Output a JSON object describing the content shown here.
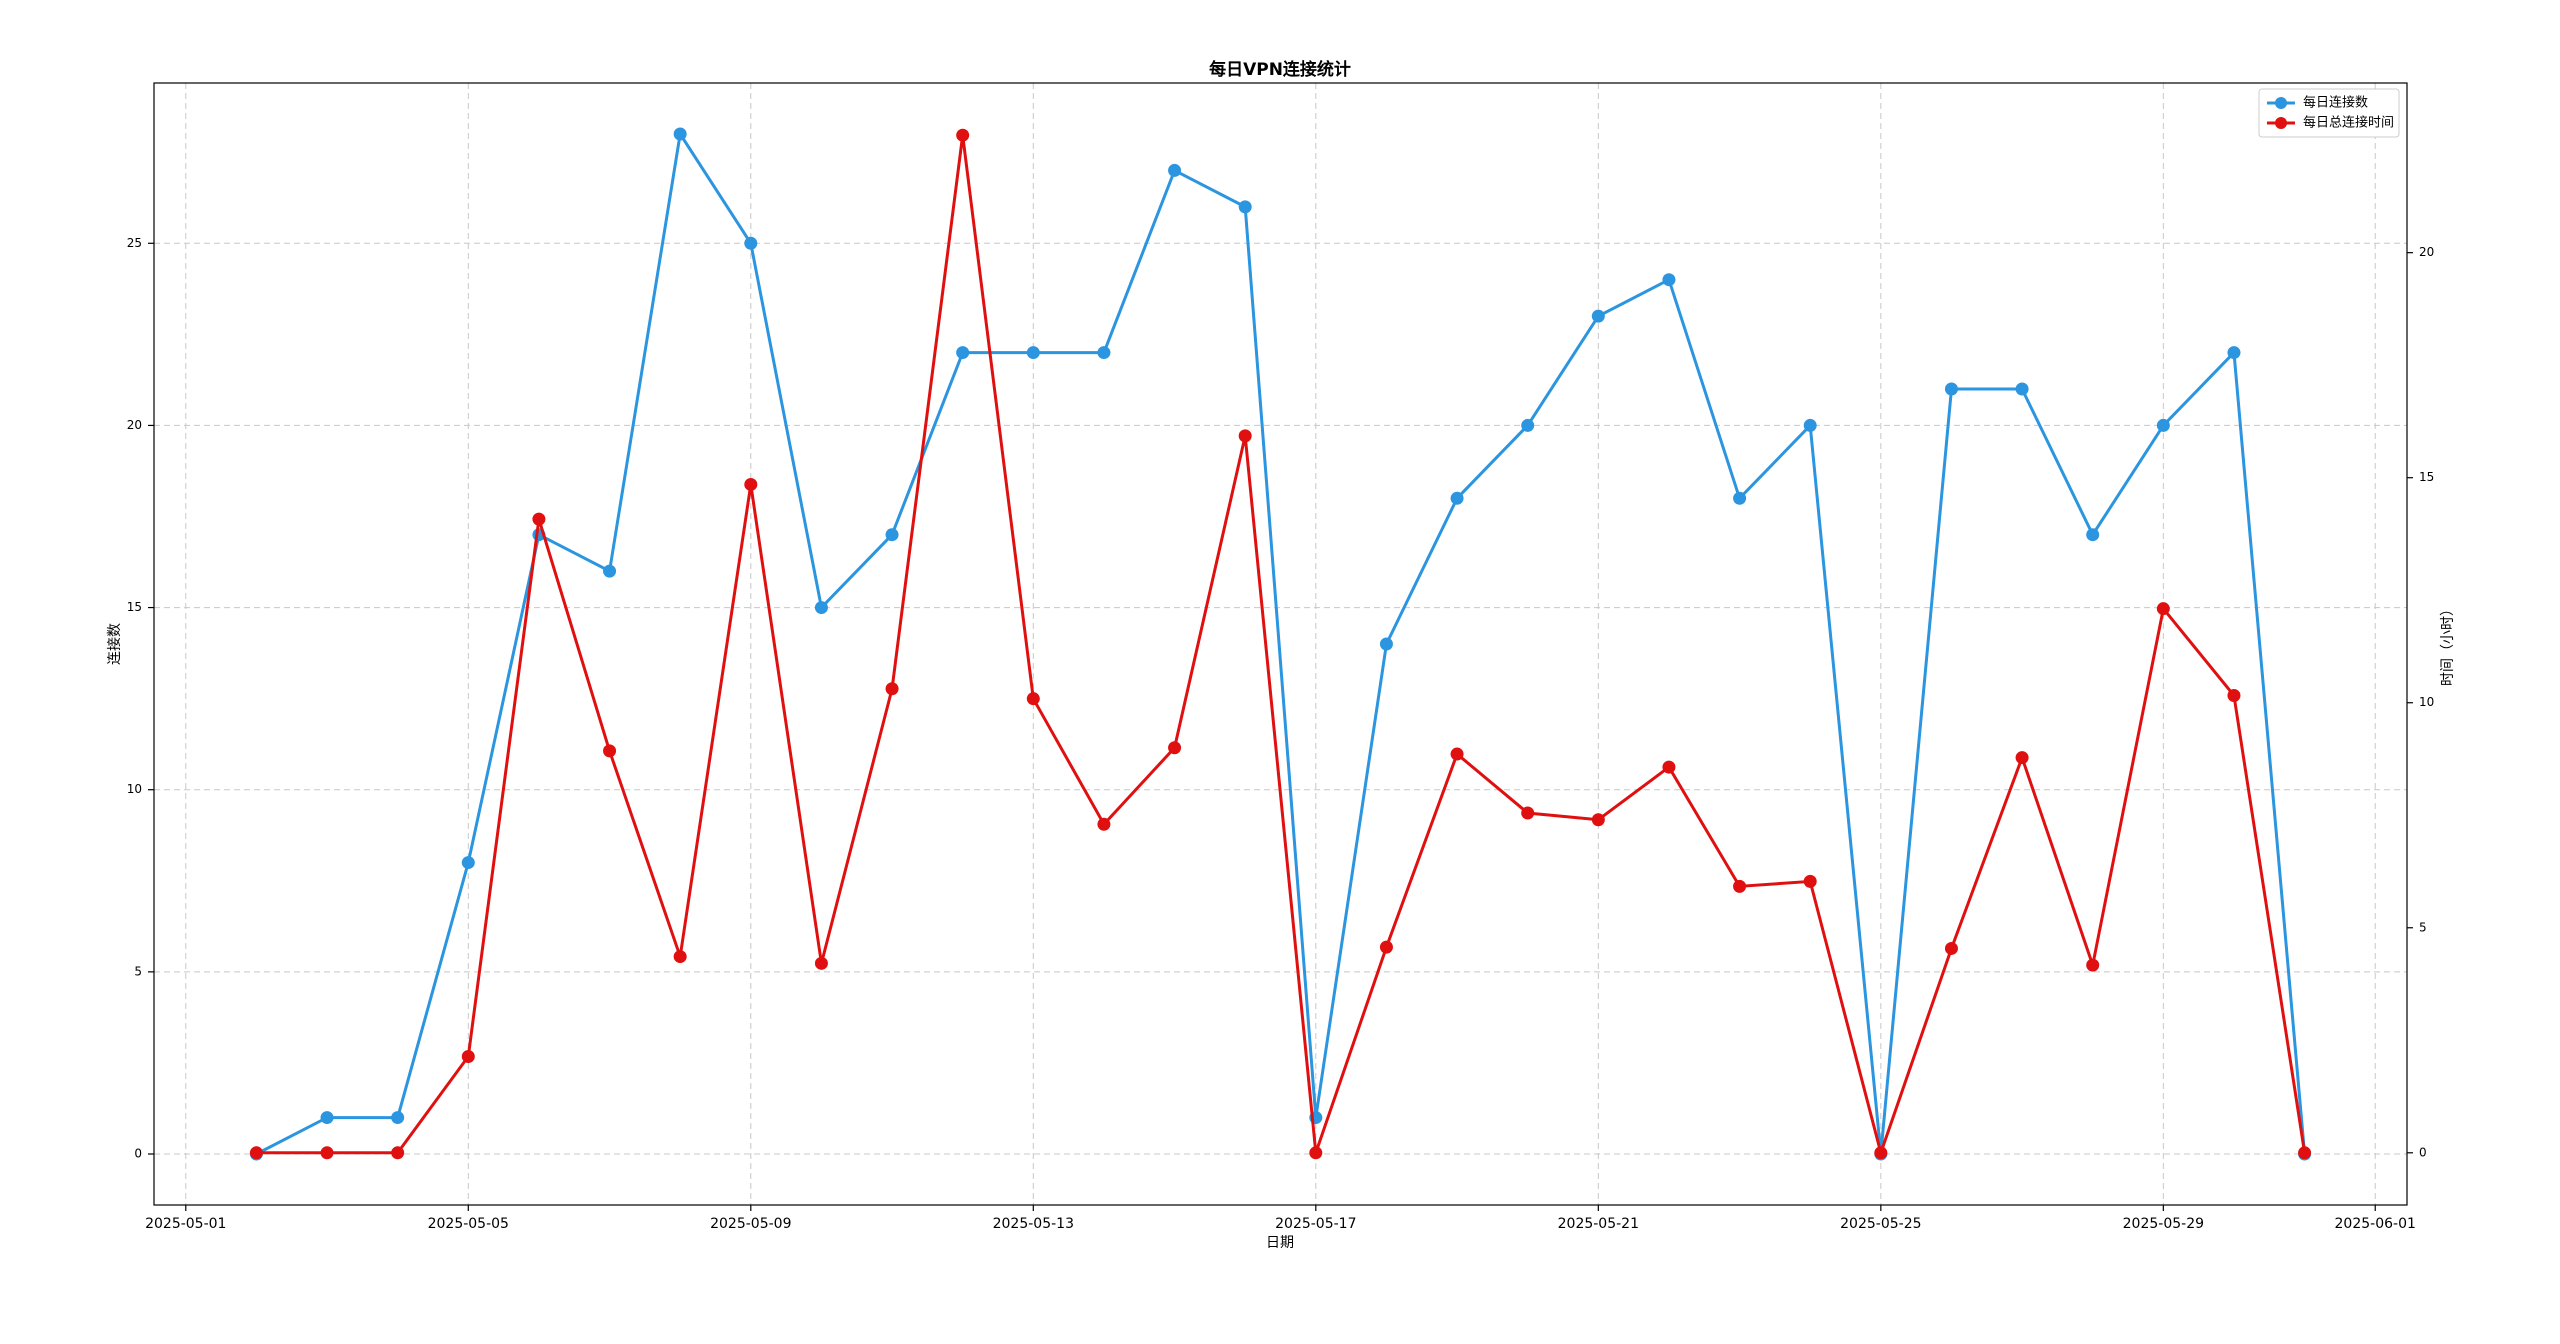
{
  "chart_data": {
    "type": "line",
    "title": "每日VPN连接统计",
    "x_label": "日期",
    "y_label": "连接数",
    "y2_label": "时间（小时）",
    "x": [
      "2025-05-02",
      "2025-05-03",
      "2025-05-04",
      "2025-05-05",
      "2025-05-06",
      "2025-05-07",
      "2025-05-08",
      "2025-05-09",
      "2025-05-10",
      "2025-05-11",
      "2025-05-12",
      "2025-05-13",
      "2025-05-14",
      "2025-05-15",
      "2025-05-16",
      "2025-05-17",
      "2025-05-18",
      "2025-05-19",
      "2025-05-20",
      "2025-05-21",
      "2025-05-22",
      "2025-05-23",
      "2025-05-24",
      "2025-05-25",
      "2025-05-26",
      "2025-05-27",
      "2025-05-28",
      "2025-05-29",
      "2025-05-30",
      "2025-05-31"
    ],
    "xticks": [
      "2025-05-01",
      "2025-05-05",
      "2025-05-09",
      "2025-05-13",
      "2025-05-17",
      "2025-05-21",
      "2025-05-25",
      "2025-05-29",
      "2025-06-01"
    ],
    "series": [
      {
        "name": "每日连接数",
        "color": "#2b95e0",
        "axis": "y",
        "values": [
          0,
          1,
          1,
          8,
          17,
          16,
          28,
          25,
          15,
          17,
          22,
          22,
          22,
          27,
          26,
          1,
          14,
          18,
          20,
          23,
          24,
          18,
          20,
          0,
          21,
          21,
          17,
          20,
          22,
          0
        ]
      },
      {
        "name": "每日总连接时间",
        "color": "#e01010",
        "axis": "y2",
        "values": [
          0,
          0,
          0,
          2.14,
          14.08,
          8.93,
          4.36,
          14.85,
          4.21,
          10.31,
          22.61,
          10.09,
          7.3,
          9.0,
          15.93,
          0,
          4.57,
          8.86,
          7.55,
          7.4,
          8.57,
          5.92,
          6.03,
          0,
          4.54,
          8.78,
          4.17,
          12.09,
          10.16,
          0
        ]
      }
    ],
    "ylim": [
      -1.4,
      29.4
    ],
    "yticks": [
      0,
      5,
      10,
      15,
      20,
      25
    ],
    "y2lim": [
      -1.16,
      23.77
    ],
    "y2ticks": [
      0,
      5,
      10,
      15,
      20
    ],
    "grid": true,
    "legend": "upper right"
  }
}
